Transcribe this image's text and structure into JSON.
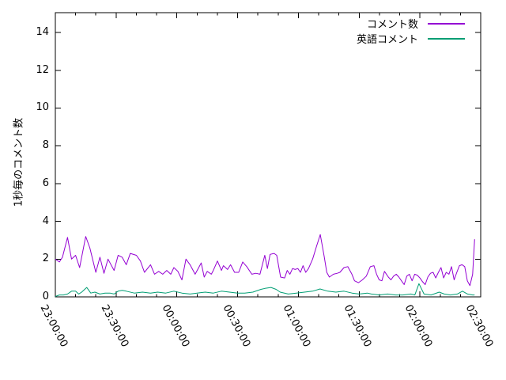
{
  "chart_data": {
    "type": "line",
    "title": "",
    "xlabel": "",
    "ylabel": "1秒毎のコメント数",
    "background": "#ffffff",
    "axis_color": "#000000",
    "grid": false,
    "legend_position": "top-right-inside",
    "x_unit": "minutes after 23:00:00",
    "xlim": [
      0,
      210
    ],
    "ylim": [
      0,
      15.05
    ],
    "y_ticks": [
      0,
      2,
      4,
      6,
      8,
      10,
      12,
      14
    ],
    "x_major_ticks": [
      {
        "minute": 0,
        "label": "23:00:00"
      },
      {
        "minute": 30,
        "label": "23:30:00"
      },
      {
        "minute": 60,
        "label": "00:00:00"
      },
      {
        "minute": 90,
        "label": "00:30:00"
      },
      {
        "minute": 120,
        "label": "01:00:00"
      },
      {
        "minute": 150,
        "label": "01:30:00"
      },
      {
        "minute": 180,
        "label": "02:00:00"
      },
      {
        "minute": 210,
        "label": "02:30:00"
      }
    ],
    "x_minor_tick_every_minutes": 10,
    "series": [
      {
        "key": "comments",
        "name": "コメント数",
        "color": "#9400d3",
        "points": [
          [
            0,
            2.0
          ],
          [
            2,
            1.85
          ],
          [
            3.5,
            2.1
          ],
          [
            6,
            3.15
          ],
          [
            8,
            2.0
          ],
          [
            10,
            2.2
          ],
          [
            12,
            1.55
          ],
          [
            15,
            3.2
          ],
          [
            17,
            2.6
          ],
          [
            20,
            1.3
          ],
          [
            22,
            2.1
          ],
          [
            24,
            1.25
          ],
          [
            26,
            2.0
          ],
          [
            29,
            1.4
          ],
          [
            31,
            2.2
          ],
          [
            33,
            2.1
          ],
          [
            35,
            1.7
          ],
          [
            37,
            2.3
          ],
          [
            40,
            2.2
          ],
          [
            42,
            1.9
          ],
          [
            44,
            1.3
          ],
          [
            47,
            1.7
          ],
          [
            49,
            1.2
          ],
          [
            51,
            1.35
          ],
          [
            53,
            1.2
          ],
          [
            55,
            1.4
          ],
          [
            57,
            1.2
          ],
          [
            58.5,
            1.55
          ],
          [
            60.5,
            1.35
          ],
          [
            62.5,
            0.9
          ],
          [
            64.5,
            2.0
          ],
          [
            66.5,
            1.7
          ],
          [
            69,
            1.2
          ],
          [
            72,
            1.8
          ],
          [
            73.5,
            1.05
          ],
          [
            75,
            1.35
          ],
          [
            77,
            1.2
          ],
          [
            78,
            1.4
          ],
          [
            80,
            1.9
          ],
          [
            82,
            1.4
          ],
          [
            83,
            1.65
          ],
          [
            85,
            1.45
          ],
          [
            86.5,
            1.7
          ],
          [
            88.5,
            1.3
          ],
          [
            90.5,
            1.3
          ],
          [
            92.5,
            1.85
          ],
          [
            94.5,
            1.6
          ],
          [
            97,
            1.2
          ],
          [
            99,
            1.25
          ],
          [
            101,
            1.2
          ],
          [
            103.4,
            2.2
          ],
          [
            104.7,
            1.5
          ],
          [
            106,
            2.25
          ],
          [
            108,
            2.3
          ],
          [
            109.3,
            2.2
          ],
          [
            111.2,
            1.05
          ],
          [
            113.2,
            1.0
          ],
          [
            114.5,
            1.4
          ],
          [
            115.8,
            1.2
          ],
          [
            117.1,
            1.5
          ],
          [
            118.4,
            1.45
          ],
          [
            119.7,
            1.5
          ],
          [
            121,
            1.3
          ],
          [
            122.3,
            1.65
          ],
          [
            123.6,
            1.3
          ],
          [
            125,
            1.5
          ],
          [
            127,
            2.0
          ],
          [
            129,
            2.7
          ],
          [
            130.8,
            3.3
          ],
          [
            132.7,
            2.15
          ],
          [
            134,
            1.3
          ],
          [
            135.3,
            1.05
          ],
          [
            137.3,
            1.2
          ],
          [
            139.2,
            1.25
          ],
          [
            140.5,
            1.3
          ],
          [
            142.5,
            1.55
          ],
          [
            144.4,
            1.6
          ],
          [
            146.4,
            1.2
          ],
          [
            147.7,
            0.85
          ],
          [
            149.6,
            0.75
          ],
          [
            151.6,
            0.9
          ],
          [
            153.5,
            1.1
          ],
          [
            155.5,
            1.6
          ],
          [
            157.3,
            1.65
          ],
          [
            158.6,
            1.2
          ],
          [
            159.9,
            0.9
          ],
          [
            161.2,
            0.85
          ],
          [
            162.5,
            1.35
          ],
          [
            164.4,
            1.05
          ],
          [
            165.7,
            0.9
          ],
          [
            167,
            1.1
          ],
          [
            168.3,
            1.2
          ],
          [
            169.6,
            1.05
          ],
          [
            170.9,
            0.85
          ],
          [
            172.2,
            0.65
          ],
          [
            173.5,
            1.1
          ],
          [
            174.8,
            1.2
          ],
          [
            176.1,
            0.85
          ],
          [
            177.4,
            1.2
          ],
          [
            178.7,
            1.15
          ],
          [
            180,
            1.0
          ],
          [
            181.3,
            0.8
          ],
          [
            182.6,
            0.65
          ],
          [
            183.9,
            1.05
          ],
          [
            185.2,
            1.25
          ],
          [
            186.5,
            1.3
          ],
          [
            187.8,
            1.0
          ],
          [
            189.1,
            1.3
          ],
          [
            190.4,
            1.55
          ],
          [
            191.7,
            1.0
          ],
          [
            193,
            1.3
          ],
          [
            194.3,
            1.2
          ],
          [
            195.6,
            1.6
          ],
          [
            196.9,
            0.9
          ],
          [
            198.2,
            1.3
          ],
          [
            199.5,
            1.65
          ],
          [
            200.8,
            1.7
          ],
          [
            202.1,
            1.6
          ],
          [
            203.4,
            0.85
          ],
          [
            204.7,
            0.6
          ],
          [
            206,
            1.2
          ],
          [
            207,
            3.05
          ]
        ]
      },
      {
        "key": "english-comments",
        "name": "英語コメント",
        "color": "#009e73",
        "points": [
          [
            0,
            0.02
          ],
          [
            2,
            0.1
          ],
          [
            4,
            0.1
          ],
          [
            6,
            0.15
          ],
          [
            8,
            0.3
          ],
          [
            10,
            0.3
          ],
          [
            11.5,
            0.15
          ],
          [
            13,
            0.25
          ],
          [
            15.5,
            0.5
          ],
          [
            17.5,
            0.2
          ],
          [
            19.5,
            0.25
          ],
          [
            22,
            0.15
          ],
          [
            24.5,
            0.2
          ],
          [
            27,
            0.2
          ],
          [
            29,
            0.15
          ],
          [
            31,
            0.3
          ],
          [
            33,
            0.35
          ],
          [
            35,
            0.3
          ],
          [
            39,
            0.2
          ],
          [
            43,
            0.25
          ],
          [
            47,
            0.2
          ],
          [
            50.5,
            0.25
          ],
          [
            54.5,
            0.2
          ],
          [
            58.5,
            0.3
          ],
          [
            62.5,
            0.2
          ],
          [
            66.5,
            0.15
          ],
          [
            70,
            0.2
          ],
          [
            74,
            0.25
          ],
          [
            78,
            0.2
          ],
          [
            82,
            0.3
          ],
          [
            86,
            0.25
          ],
          [
            90,
            0.2
          ],
          [
            93.5,
            0.2
          ],
          [
            97.5,
            0.25
          ],
          [
            101.5,
            0.4
          ],
          [
            103.5,
            0.45
          ],
          [
            106.5,
            0.5
          ],
          [
            109,
            0.4
          ],
          [
            111,
            0.25
          ],
          [
            115,
            0.15
          ],
          [
            119,
            0.2
          ],
          [
            123,
            0.25
          ],
          [
            127,
            0.3
          ],
          [
            130.7,
            0.42
          ],
          [
            134.5,
            0.3
          ],
          [
            138.5,
            0.25
          ],
          [
            142.5,
            0.3
          ],
          [
            146.5,
            0.2
          ],
          [
            150,
            0.15
          ],
          [
            154,
            0.2
          ],
          [
            156,
            0.15
          ],
          [
            160,
            0.1
          ],
          [
            164,
            0.15
          ],
          [
            168,
            0.1
          ],
          [
            171.5,
            0.1
          ],
          [
            175.5,
            0.15
          ],
          [
            177.5,
            0.1
          ],
          [
            179.5,
            0.7
          ],
          [
            182,
            0.15
          ],
          [
            185.5,
            0.1
          ],
          [
            189.5,
            0.25
          ],
          [
            192,
            0.15
          ],
          [
            195,
            0.1
          ],
          [
            198.5,
            0.15
          ],
          [
            201,
            0.3
          ],
          [
            203.5,
            0.15
          ],
          [
            206,
            0.1
          ],
          [
            207,
            0.1
          ]
        ]
      }
    ]
  }
}
